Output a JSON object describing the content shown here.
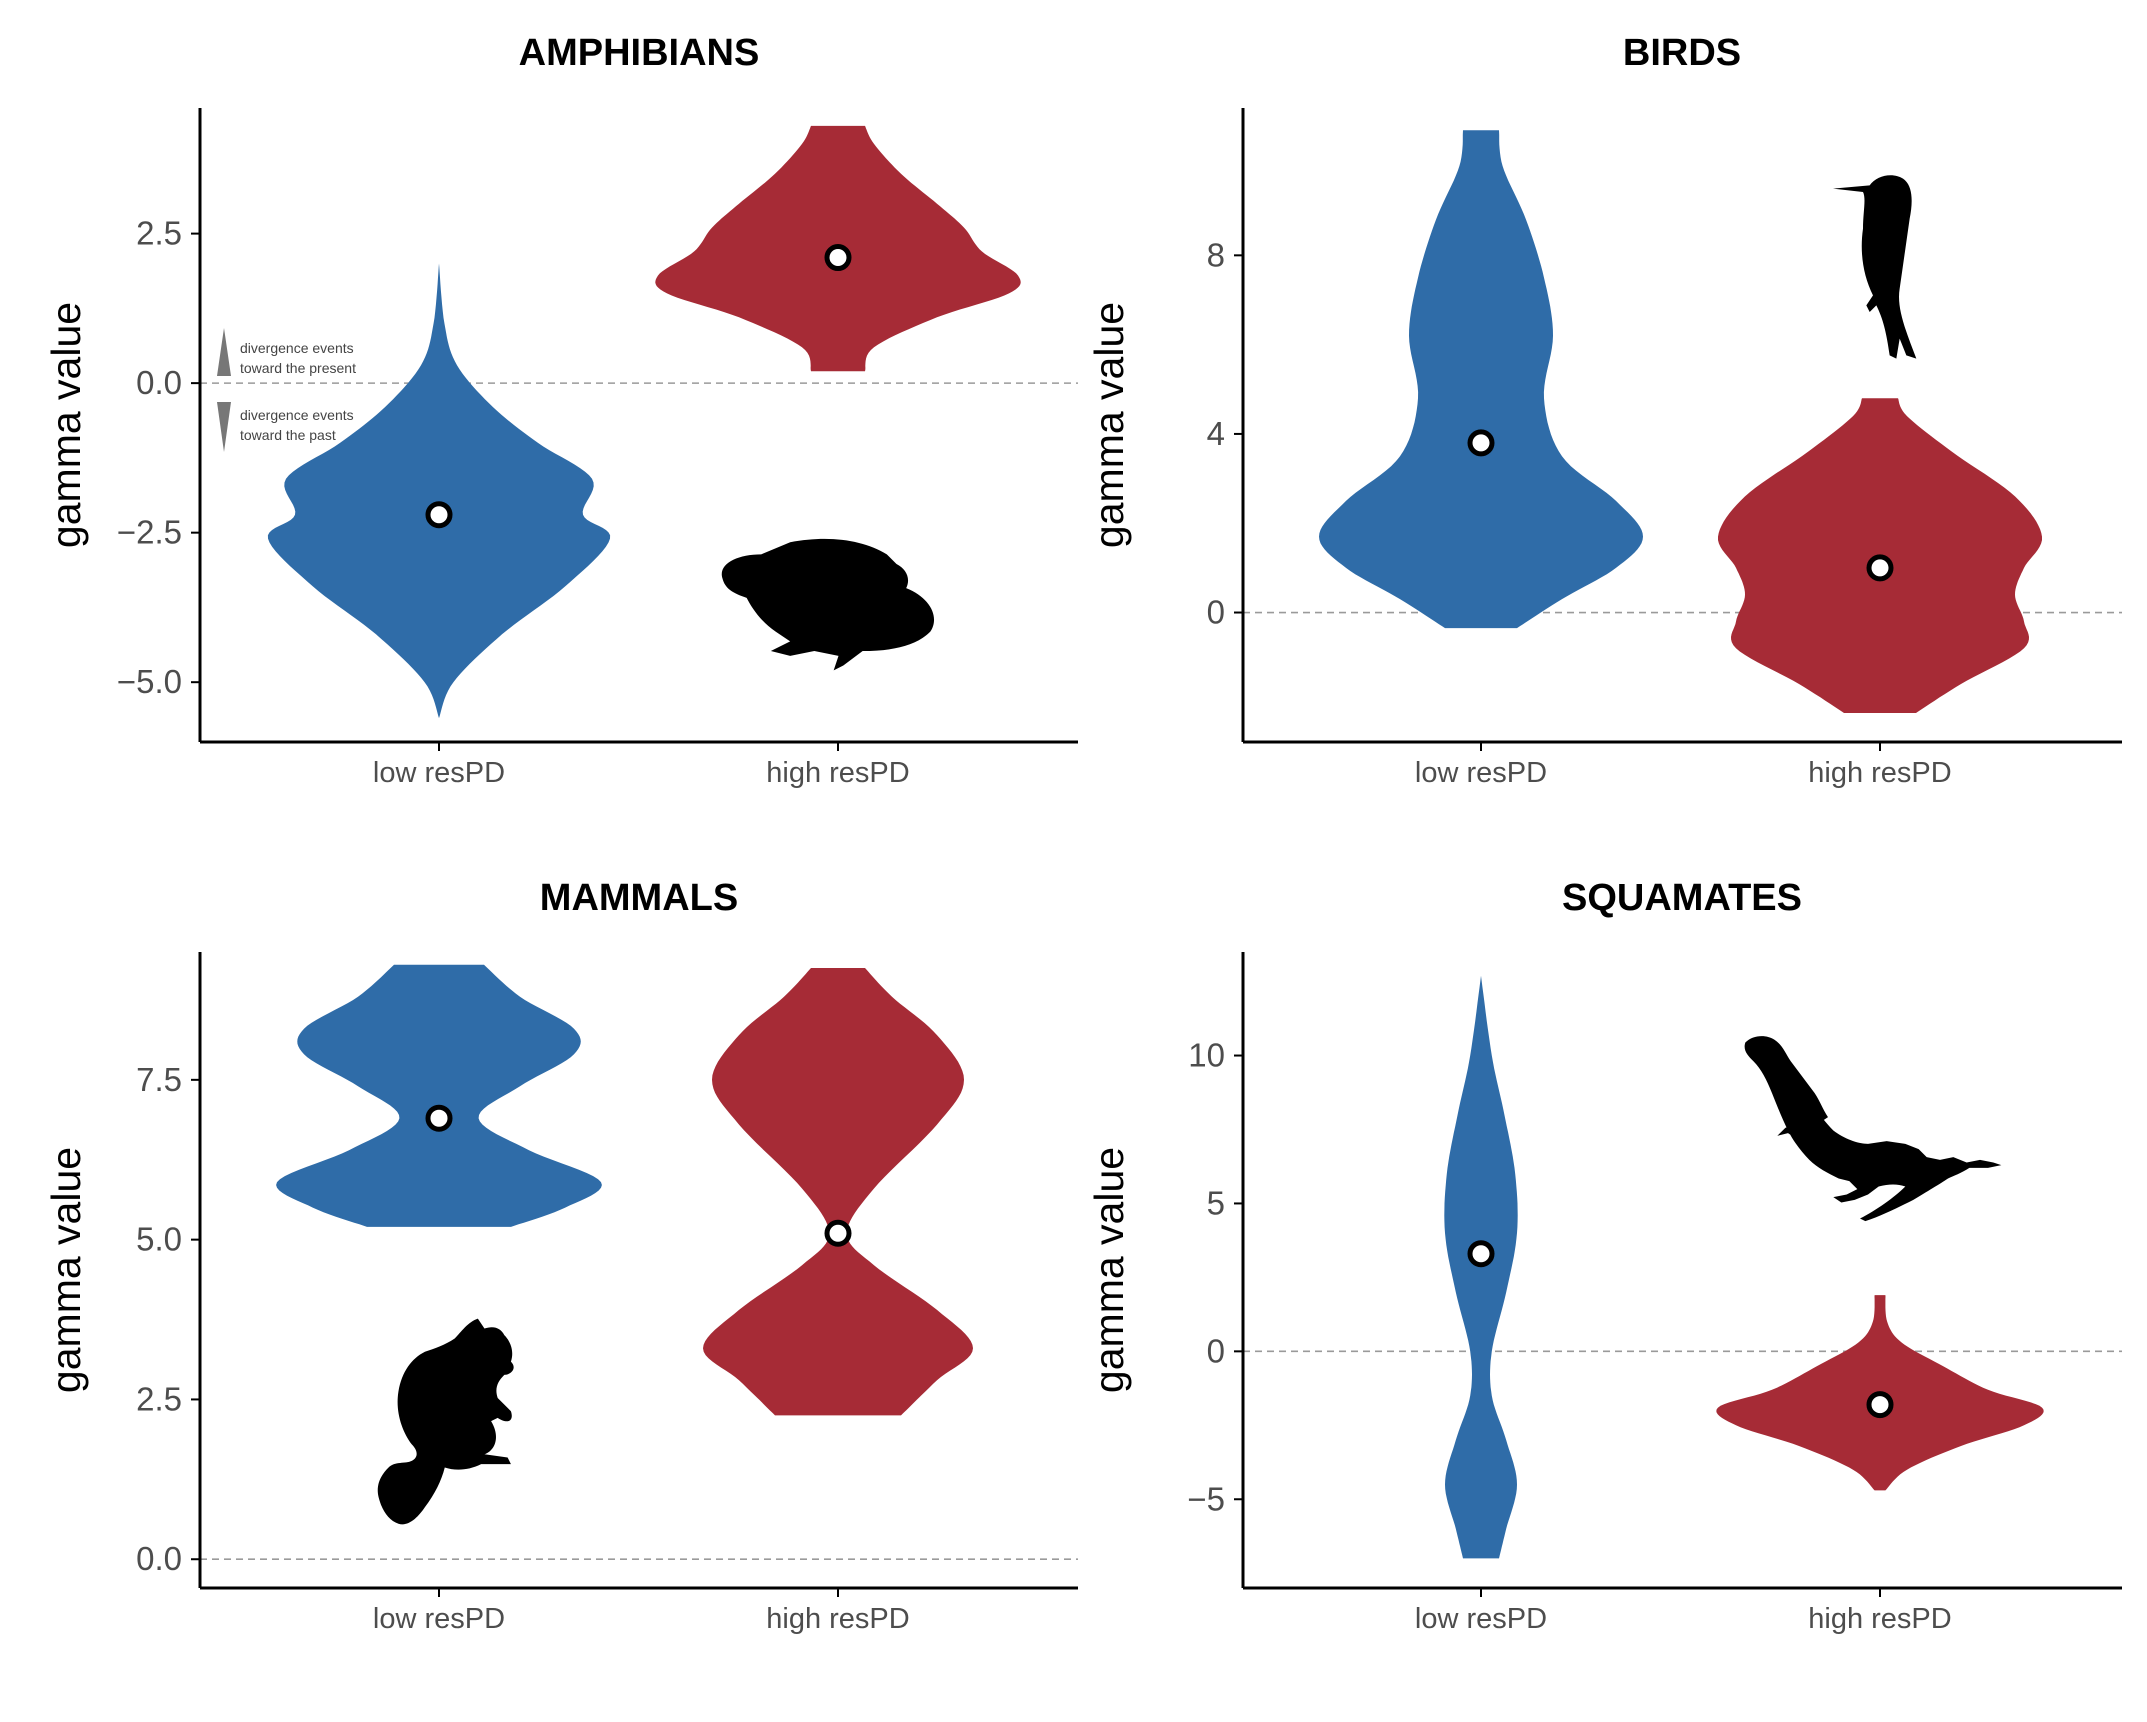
{
  "colors": {
    "low": "#2f6ca8",
    "high": "#a62b36",
    "zero_line": "#9a9a9a",
    "axis": "#000000"
  },
  "chart_data": [
    {
      "type": "violin",
      "title": "AMPHIBIANS",
      "ylabel": "gamma value",
      "categories": [
        "low resPD",
        "high resPD"
      ],
      "ylim": [
        -6,
        4.6
      ],
      "yticks": [
        2.5,
        0,
        -2.5,
        -5
      ],
      "ytick_labels": [
        "2.5",
        "0.0",
        "−2.5",
        "−5.0"
      ],
      "reference_line": 0,
      "icon": "frog-silhouette-icon",
      "annotation": {
        "up_line1": "divergence events",
        "up_line2": "toward the present",
        "down_line1": "divergence events",
        "down_line2": "toward the past"
      },
      "series": [
        {
          "category": "low resPD",
          "median": -2.2,
          "min": -5.6,
          "max": 2.0,
          "profile": [
            [
              -5.6,
              0.0
            ],
            [
              -5.0,
              0.08
            ],
            [
              -4.2,
              0.35
            ],
            [
              -3.4,
              0.7
            ],
            [
              -2.6,
              0.95
            ],
            [
              -2.2,
              0.8
            ],
            [
              -1.6,
              0.85
            ],
            [
              -1.0,
              0.55
            ],
            [
              -0.4,
              0.3
            ],
            [
              0.3,
              0.1
            ],
            [
              1.0,
              0.03
            ],
            [
              2.0,
              0.0
            ]
          ]
        },
        {
          "category": "high resPD",
          "median": 2.1,
          "min": 0.2,
          "max": 4.3,
          "profile": [
            [
              0.2,
              0.15
            ],
            [
              0.6,
              0.2
            ],
            [
              1.1,
              0.55
            ],
            [
              1.5,
              0.95
            ],
            [
              1.8,
              1.0
            ],
            [
              2.2,
              0.8
            ],
            [
              2.6,
              0.7
            ],
            [
              3.0,
              0.55
            ],
            [
              3.5,
              0.35
            ],
            [
              4.0,
              0.2
            ],
            [
              4.3,
              0.15
            ]
          ]
        }
      ]
    },
    {
      "type": "violin",
      "title": "BIRDS",
      "ylabel": "gamma value",
      "categories": [
        "low resPD",
        "high resPD"
      ],
      "ylim": [
        -2.9,
        11.3
      ],
      "yticks": [
        8,
        4,
        0
      ],
      "ytick_labels": [
        "8",
        "4",
        "0"
      ],
      "reference_line": 0,
      "icon": "bird-silhouette-icon",
      "series": [
        {
          "category": "low resPD",
          "median": 3.8,
          "min": -0.35,
          "max": 10.8,
          "profile": [
            [
              -0.35,
              0.2
            ],
            [
              0.3,
              0.45
            ],
            [
              1.0,
              0.75
            ],
            [
              1.7,
              0.9
            ],
            [
              2.5,
              0.75
            ],
            [
              3.5,
              0.45
            ],
            [
              4.8,
              0.35
            ],
            [
              6.2,
              0.4
            ],
            [
              7.5,
              0.35
            ],
            [
              8.8,
              0.25
            ],
            [
              10.0,
              0.12
            ],
            [
              10.8,
              0.1
            ]
          ]
        },
        {
          "category": "high resPD",
          "median": 1.0,
          "min": -2.25,
          "max": 4.8,
          "profile": [
            [
              -2.25,
              0.2
            ],
            [
              -1.6,
              0.45
            ],
            [
              -0.8,
              0.8
            ],
            [
              -0.2,
              0.8
            ],
            [
              0.4,
              0.75
            ],
            [
              1.0,
              0.8
            ],
            [
              1.7,
              0.9
            ],
            [
              2.6,
              0.75
            ],
            [
              3.6,
              0.4
            ],
            [
              4.4,
              0.15
            ],
            [
              4.8,
              0.1
            ]
          ]
        }
      ]
    },
    {
      "type": "violin",
      "title": "MAMMALS",
      "ylabel": "gamma value",
      "categories": [
        "low resPD",
        "high resPD"
      ],
      "ylim": [
        -0.45,
        9.5
      ],
      "yticks": [
        7.5,
        5.0,
        2.5,
        0.0
      ],
      "ytick_labels": [
        "7.5",
        "5.0",
        "2.5",
        "0.0"
      ],
      "reference_line": 0,
      "icon": "squirrel-silhouette-icon",
      "series": [
        {
          "category": "low resPD",
          "median": 6.9,
          "min": 5.2,
          "max": 9.3,
          "profile": [
            [
              5.2,
              0.4
            ],
            [
              5.5,
              0.7
            ],
            [
              5.9,
              0.9
            ],
            [
              6.4,
              0.5
            ],
            [
              6.9,
              0.22
            ],
            [
              7.4,
              0.45
            ],
            [
              7.9,
              0.75
            ],
            [
              8.3,
              0.75
            ],
            [
              8.8,
              0.45
            ],
            [
              9.3,
              0.25
            ]
          ]
        },
        {
          "category": "high resPD",
          "median": 5.1,
          "min": 2.25,
          "max": 9.25,
          "profile": [
            [
              2.25,
              0.35
            ],
            [
              2.8,
              0.55
            ],
            [
              3.3,
              0.75
            ],
            [
              3.9,
              0.55
            ],
            [
              4.6,
              0.2
            ],
            [
              5.1,
              0.05
            ],
            [
              5.8,
              0.2
            ],
            [
              6.8,
              0.55
            ],
            [
              7.5,
              0.7
            ],
            [
              8.2,
              0.55
            ],
            [
              8.8,
              0.3
            ],
            [
              9.25,
              0.15
            ]
          ]
        }
      ]
    },
    {
      "type": "violin",
      "title": "SQUAMATES",
      "ylabel": "gamma value",
      "categories": [
        "low resPD",
        "high resPD"
      ],
      "ylim": [
        -8.0,
        13.5
      ],
      "yticks": [
        10,
        5,
        0,
        -5
      ],
      "ytick_labels": [
        "10",
        "5",
        "0",
        "−5"
      ],
      "reference_line": 0,
      "icon": "lizard-silhouette-icon",
      "series": [
        {
          "category": "low resPD",
          "median": 3.3,
          "min": -7.0,
          "max": 12.7,
          "profile": [
            [
              -7.0,
              0.1
            ],
            [
              -6.0,
              0.14
            ],
            [
              -4.5,
              0.2
            ],
            [
              -3.0,
              0.14
            ],
            [
              -1.5,
              0.06
            ],
            [
              0.0,
              0.06
            ],
            [
              2.0,
              0.14
            ],
            [
              4.0,
              0.2
            ],
            [
              6.0,
              0.19
            ],
            [
              8.0,
              0.13
            ],
            [
              10.0,
              0.06
            ],
            [
              12.7,
              0.0
            ]
          ]
        },
        {
          "category": "high resPD",
          "median": -1.8,
          "min": -4.7,
          "max": 1.9,
          "profile": [
            [
              -4.7,
              0.03
            ],
            [
              -4.0,
              0.15
            ],
            [
              -3.2,
              0.45
            ],
            [
              -2.5,
              0.8
            ],
            [
              -1.9,
              0.9
            ],
            [
              -1.3,
              0.6
            ],
            [
              -0.5,
              0.35
            ],
            [
              0.3,
              0.12
            ],
            [
              1.0,
              0.04
            ],
            [
              1.9,
              0.03
            ]
          ]
        }
      ]
    }
  ]
}
